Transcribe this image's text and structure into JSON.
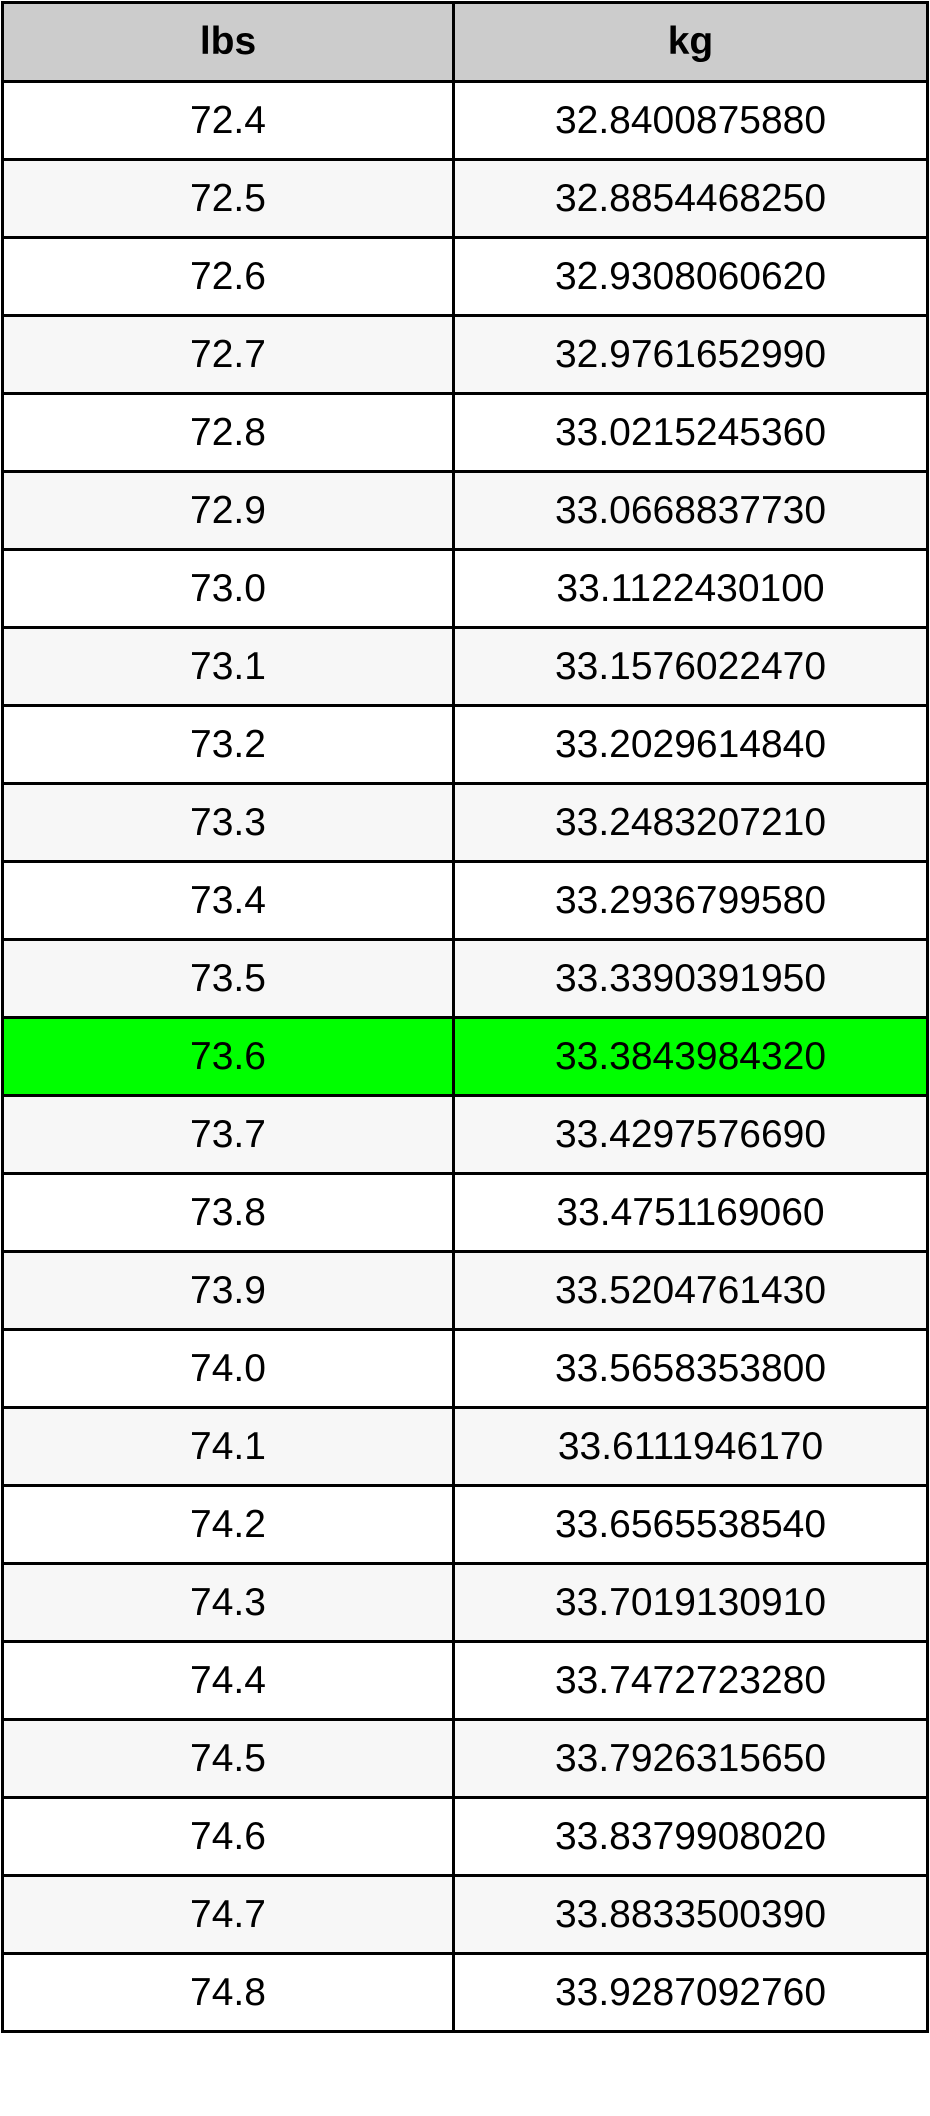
{
  "table": {
    "headers": [
      "lbs",
      "kg"
    ],
    "highlight_color": "#00ff00",
    "highlighted_row": 12,
    "rows": [
      [
        "72.4",
        "32.8400875880"
      ],
      [
        "72.5",
        "32.8854468250"
      ],
      [
        "72.6",
        "32.9308060620"
      ],
      [
        "72.7",
        "32.9761652990"
      ],
      [
        "72.8",
        "33.0215245360"
      ],
      [
        "72.9",
        "33.0668837730"
      ],
      [
        "73.0",
        "33.1122430100"
      ],
      [
        "73.1",
        "33.1576022470"
      ],
      [
        "73.2",
        "33.2029614840"
      ],
      [
        "73.3",
        "33.2483207210"
      ],
      [
        "73.4",
        "33.2936799580"
      ],
      [
        "73.5",
        "33.3390391950"
      ],
      [
        "73.6",
        "33.3843984320"
      ],
      [
        "73.7",
        "33.4297576690"
      ],
      [
        "73.8",
        "33.4751169060"
      ],
      [
        "73.9",
        "33.5204761430"
      ],
      [
        "74.0",
        "33.5658353800"
      ],
      [
        "74.1",
        "33.6111946170"
      ],
      [
        "74.2",
        "33.6565538540"
      ],
      [
        "74.3",
        "33.7019130910"
      ],
      [
        "74.4",
        "33.7472723280"
      ],
      [
        "74.5",
        "33.7926315650"
      ],
      [
        "74.6",
        "33.8379908020"
      ],
      [
        "74.7",
        "33.8833500390"
      ],
      [
        "74.8",
        "33.9287092760"
      ]
    ]
  }
}
